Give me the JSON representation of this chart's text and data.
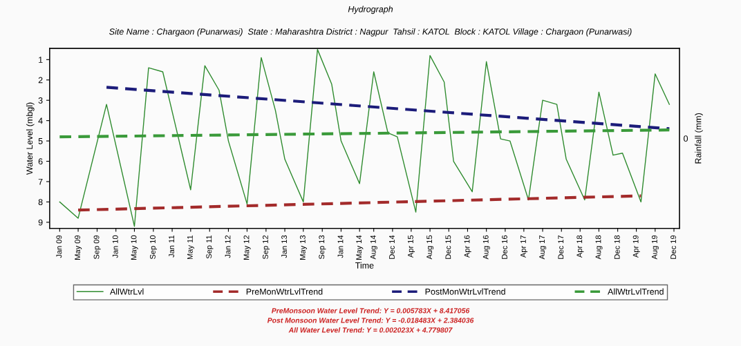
{
  "chart_data": {
    "type": "line",
    "title": "Hydrograph",
    "subtitle": "Site Name : Chargaon (Punarwasi)  State : Maharashtra District : Nagpur  Tahsil : KATOL  Block : KATOL Village : Chargaon (Punarwasi)",
    "xlabel": "Time",
    "ylabel": "Water Level (mbgl)",
    "y2label": "Rainfall (mm)",
    "xlim": [
      "2008-10-28",
      "2020-01-06"
    ],
    "ylim": [
      9.3,
      0.45
    ],
    "yticks": [
      1,
      2,
      3,
      4,
      5,
      6,
      7,
      8,
      9
    ],
    "xticks": [
      {
        "value": "2009-01",
        "label": "Jan 09"
      },
      {
        "value": "2009-05",
        "label": "May 09"
      },
      {
        "value": "2009-09",
        "label": "Sep 09"
      },
      {
        "value": "2010-01",
        "label": "Jan 10"
      },
      {
        "value": "2010-05",
        "label": "May 10"
      },
      {
        "value": "2010-09",
        "label": "Sep 10"
      },
      {
        "value": "2011-01",
        "label": "Jan 11"
      },
      {
        "value": "2011-05",
        "label": "May 11"
      },
      {
        "value": "2011-09",
        "label": "Sep 11"
      },
      {
        "value": "2012-01",
        "label": "Jan 12"
      },
      {
        "value": "2012-05",
        "label": "May 12"
      },
      {
        "value": "2012-09",
        "label": "Sep 12"
      },
      {
        "value": "2013-01",
        "label": "Jan 13"
      },
      {
        "value": "2013-05",
        "label": "May 13"
      },
      {
        "value": "2013-09",
        "label": "Sep 13"
      },
      {
        "value": "2014-01",
        "label": "Jan 14"
      },
      {
        "value": "2014-05",
        "label": "May 14"
      },
      {
        "value": "2014-08",
        "label": "Aug 14"
      },
      {
        "value": "2014-12",
        "label": "Dec 14"
      },
      {
        "value": "2015-04",
        "label": "Apr 15"
      },
      {
        "value": "2015-08",
        "label": "Aug 15"
      },
      {
        "value": "2015-12",
        "label": "Dec 15"
      },
      {
        "value": "2016-04",
        "label": "Apr 16"
      },
      {
        "value": "2016-08",
        "label": "Aug 16"
      },
      {
        "value": "2016-12",
        "label": "Dec 16"
      },
      {
        "value": "2017-04",
        "label": "Apr 17"
      },
      {
        "value": "2017-08",
        "label": "Aug 17"
      },
      {
        "value": "2017-12",
        "label": "Dec 17"
      },
      {
        "value": "2018-04",
        "label": "Apr 18"
      },
      {
        "value": "2018-08",
        "label": "Aug 18"
      },
      {
        "value": "2018-12",
        "label": "Dec 18"
      },
      {
        "value": "2019-04",
        "label": "Apr 19"
      },
      {
        "value": "2019-08",
        "label": "Aug 19"
      },
      {
        "value": "2019-12",
        "label": "Dec 19"
      }
    ],
    "grid": false,
    "legend": "bottom",
    "marker": "none",
    "series": [
      {
        "name": "AllWtrLvl",
        "color": "#2e8b2e",
        "line_style": "solid",
        "x": [
          "2009-01",
          "2009-05",
          "2009-11",
          "2010-05",
          "2010-08",
          "2010-11",
          "2011-05",
          "2011-08",
          "2011-11",
          "2012-01",
          "2012-05",
          "2012-08",
          "2012-11",
          "2013-01",
          "2013-05",
          "2013-08",
          "2013-11",
          "2014-01",
          "2014-05",
          "2014-08",
          "2014-11",
          "2015-01",
          "2015-05",
          "2015-08",
          "2015-11",
          "2016-01",
          "2016-05",
          "2016-08",
          "2016-11",
          "2017-01",
          "2017-05",
          "2017-08",
          "2017-11",
          "2018-01",
          "2018-05",
          "2018-08",
          "2018-11",
          "2019-01",
          "2019-05",
          "2019-08",
          "2019-11"
        ],
        "values": [
          8.0,
          8.8,
          3.2,
          9.2,
          1.4,
          1.6,
          7.4,
          1.3,
          2.5,
          5.0,
          8.1,
          0.9,
          3.5,
          5.9,
          8.0,
          0.5,
          2.2,
          5.0,
          7.1,
          1.6,
          4.6,
          4.8,
          8.5,
          0.8,
          2.1,
          6.0,
          7.5,
          1.1,
          4.9,
          5.0,
          7.9,
          3.0,
          3.2,
          5.9,
          7.9,
          2.6,
          5.7,
          5.6,
          8.0,
          1.7,
          3.2
        ]
      },
      {
        "name": "PreMonWtrLvlTrend",
        "color": "#a32b2b",
        "line_style": "dashed",
        "x": [
          "2009-05",
          "2019-05"
        ],
        "values": [
          8.4,
          7.7
        ]
      },
      {
        "name": "PostMonWtrLvlTrend",
        "color": "#1c1c7a",
        "line_style": "dashed",
        "x": [
          "2009-11",
          "2019-11"
        ],
        "values": [
          2.36,
          4.4
        ]
      },
      {
        "name": "AllWtrLvlTrend",
        "color": "#3a9a3a",
        "line_style": "dashed",
        "x": [
          "2009-01",
          "2019-11"
        ],
        "values": [
          4.8,
          4.46
        ]
      }
    ],
    "annotations": [
      "0",
      "PreMonsoon Water Level Trend: Y = 0.005783X + 8.417056",
      "Post Monsoon Water Level Trend: Y = -0.018483X + 2.384036",
      "All Water Level Trend: Y = 0.002023X + 4.779807"
    ]
  }
}
